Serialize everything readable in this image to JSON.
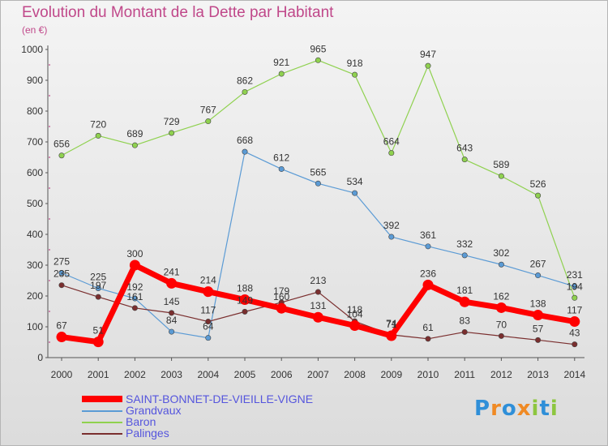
{
  "title": "Evolution du Montant de la Dette par Habitant",
  "unit": "(en €)",
  "logo": "Proxiti",
  "chart_data": {
    "type": "line",
    "title": "Evolution du Montant de la Dette par Habitant",
    "ylabel": "(en €)",
    "ylim": [
      0,
      1000
    ],
    "yticks": [
      "0",
      "100",
      "200",
      "300",
      "400",
      "500",
      "600",
      "700",
      "800",
      "900",
      "1000"
    ],
    "categories": [
      "2000",
      "2001",
      "2002",
      "2003",
      "2004",
      "2005",
      "2006",
      "2007",
      "2008",
      "2009",
      "2010",
      "2011",
      "2012",
      "2013",
      "2014"
    ],
    "grid": false,
    "legend_position": "bottom-left",
    "series": [
      {
        "name": "SAINT-BONNET-DE-VIEILLE-VIGNE",
        "color": "#ff0000",
        "values": [
          67,
          51,
          300,
          241,
          214,
          188,
          160,
          131,
          104,
          71,
          236,
          181,
          162,
          138,
          117
        ]
      },
      {
        "name": "Grandvaux",
        "color": "#5b9bd5",
        "values": [
          275,
          225,
          192,
          84,
          64,
          668,
          612,
          565,
          534,
          392,
          361,
          332,
          302,
          267,
          231
        ]
      },
      {
        "name": "Baron",
        "color": "#8fd14f",
        "values": [
          656,
          720,
          689,
          729,
          767,
          862,
          921,
          965,
          918,
          664,
          947,
          643,
          589,
          526,
          194
        ]
      },
      {
        "name": "Palinges",
        "color": "#7a2e2e",
        "values": [
          235,
          197,
          161,
          145,
          117,
          149,
          179,
          213,
          118,
          74,
          61,
          83,
          70,
          57,
          43
        ]
      }
    ],
    "data_labels": {
      "SAINT-BONNET-DE-VIEILLE-VIGNE": [
        "67",
        "51",
        "300",
        "241",
        "214",
        "188",
        "160",
        "131",
        "104",
        "71",
        "236",
        "181",
        "162",
        "138",
        "117"
      ],
      "Grandvaux": [
        "275",
        "225",
        "192",
        "84",
        "64",
        "668",
        "612",
        "565",
        "534",
        "392",
        "361",
        "332",
        "302",
        "267",
        "231"
      ],
      "Baron": [
        "656",
        "720",
        "689",
        "729",
        "767",
        "862",
        "921",
        "965",
        "918",
        "664",
        "947",
        "643",
        "589",
        "526",
        "194"
      ],
      "Palinges": [
        "235",
        "197",
        "161",
        "145",
        "117",
        "149",
        "179",
        "213",
        "118",
        "74",
        "61",
        "83",
        "70",
        "57",
        "43"
      ]
    }
  }
}
